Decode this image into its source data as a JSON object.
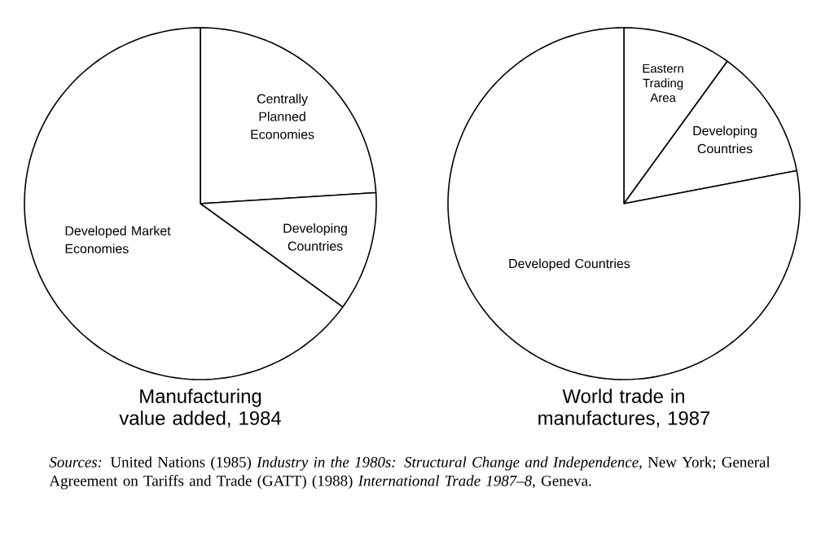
{
  "chart_data": [
    {
      "type": "pie",
      "title": "Manufacturing value added, 1984",
      "categories": [
        "Centrally Planned Economies",
        "Developing Countries",
        "Developed Market Economies"
      ],
      "values": [
        24,
        11,
        65
      ],
      "colors": [
        "#ffffff",
        "#ffffff",
        "#ffffff"
      ],
      "annotations": [
        "*Sources:* United Nations (1985) *Industry in the 1980s: Structural Change and Independence*, New York; General Agreement on Tariffs and Trade (GATT) (1988) *International Trade 1987–8*, Geneva."
      ]
    },
    {
      "type": "pie",
      "title": "World trade in manufactures, 1987",
      "categories": [
        "Eastern Trading Area",
        "Developing Countries",
        "Developed Countries"
      ],
      "values": [
        10,
        12,
        78
      ],
      "colors": [
        "#ffffff",
        "#ffffff",
        "#ffffff"
      ]
    }
  ]
}
